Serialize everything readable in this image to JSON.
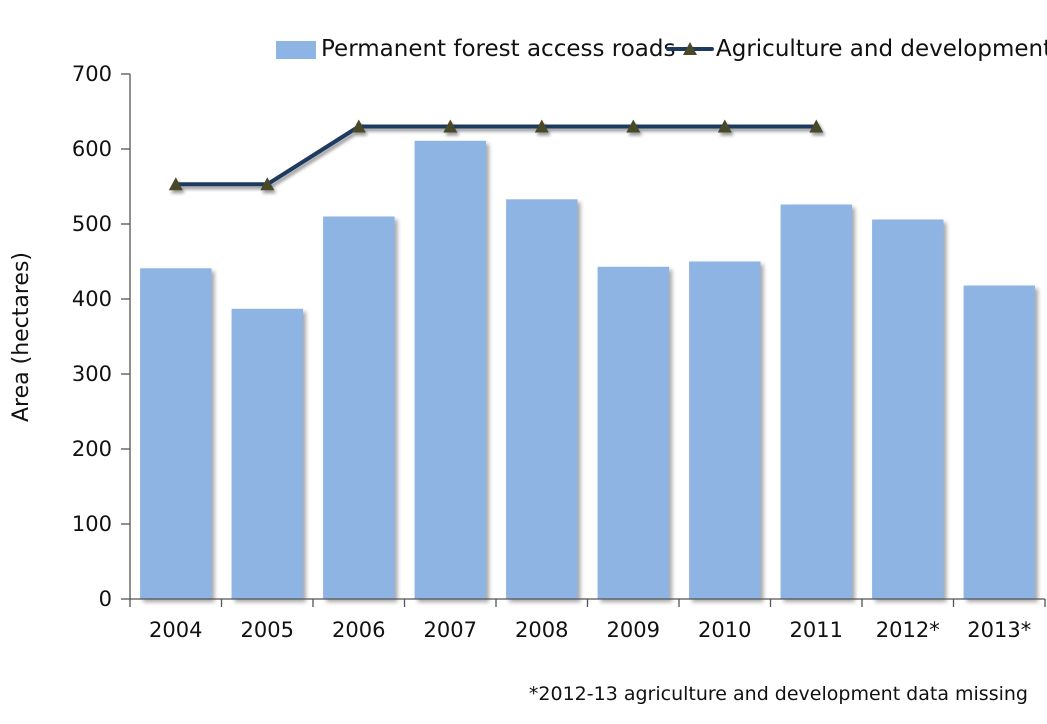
{
  "chart_data": {
    "type": "bar",
    "categories": [
      "2004",
      "2005",
      "2006",
      "2007",
      "2008",
      "2009",
      "2010",
      "2011",
      "2012*",
      "2013*"
    ],
    "series": [
      {
        "name": "Permanent forest access roads",
        "type": "bar",
        "color": "#8eb4e3",
        "values": [
          441,
          387,
          510,
          611,
          533,
          443,
          450,
          526,
          506,
          418
        ]
      },
      {
        "name": "Agriculture and development",
        "type": "line",
        "color": "#1f3a5f",
        "marker_color": "#4a4a2a",
        "values": [
          553,
          553,
          630,
          630,
          630,
          630,
          630,
          630,
          null,
          null
        ]
      }
    ],
    "xlabel": "",
    "ylabel": "Area (hectares)",
    "ylim": [
      0,
      700
    ],
    "yticks": [
      0,
      100,
      200,
      300,
      400,
      500,
      600,
      700
    ],
    "grid": false,
    "legend_position": "top-right",
    "footnote": "*2012-13 agriculture and development data missing"
  }
}
